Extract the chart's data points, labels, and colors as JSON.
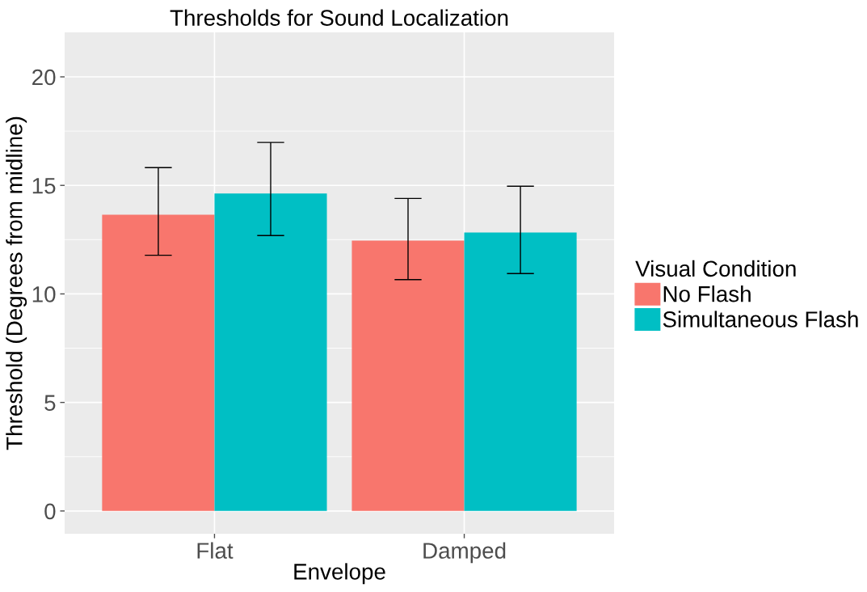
{
  "chart_data": {
    "type": "bar",
    "title": "Thresholds for Sound Localization",
    "xlabel": "Envelope",
    "ylabel": "Threshold (Degrees from midline)",
    "legend_title": "Visual Condition",
    "categories": [
      "Flat",
      "Damped"
    ],
    "series": [
      {
        "name": "No Flash",
        "color": "#f8766d",
        "values": [
          13.65,
          12.46
        ],
        "errors": [
          [
            11.78,
            15.82
          ],
          [
            10.66,
            14.4
          ]
        ]
      },
      {
        "name": "Simultaneous Flash",
        "color": "#00bfc4",
        "values": [
          14.63,
          12.83
        ],
        "errors": [
          [
            12.69,
            16.98
          ],
          [
            10.94,
            14.96
          ]
        ]
      }
    ],
    "ylim": [
      -1.05,
      22.05
    ],
    "yticks": [
      0,
      5,
      10,
      15,
      20
    ],
    "grid": true,
    "legend": "right"
  }
}
